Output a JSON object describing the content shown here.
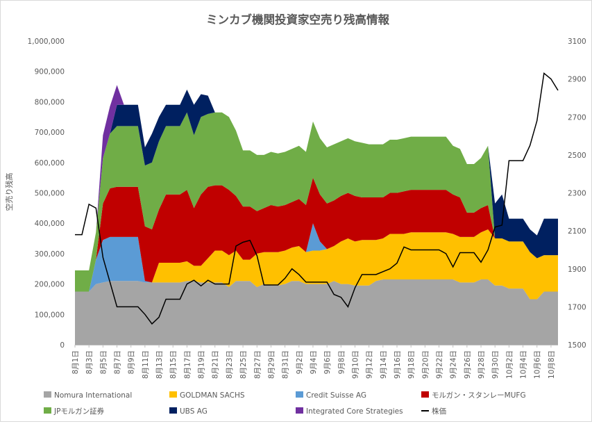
{
  "chart_data": {
    "type": "area",
    "title": "ミンカブ機関投資家空売り残高情報",
    "ylabel": "空売り残高",
    "ylim": [
      0,
      1000000
    ],
    "y_ticks": [
      "0",
      "100,000",
      "200,000",
      "300,000",
      "400,000",
      "500,000",
      "600,000",
      "700,000",
      "800,000",
      "900,000",
      "1,000,000"
    ],
    "y2lim": [
      1500,
      3100
    ],
    "y2_ticks": [
      "1500",
      "1700",
      "1900",
      "2100",
      "2300",
      "2500",
      "2700",
      "2900",
      "3100"
    ],
    "grid": false,
    "legend_position": "bottom",
    "x_tick_labels": [
      "8月1日",
      "8月3日",
      "8月5日",
      "8月7日",
      "8月9日",
      "8月11日",
      "8月13日",
      "8月15日",
      "8月17日",
      "8月19日",
      "8月21日",
      "8月23日",
      "8月25日",
      "8月27日",
      "8月29日",
      "8月31日",
      "9月2日",
      "9月4日",
      "9月6日",
      "9月8日",
      "9月10日",
      "9月12日",
      "9月14日",
      "9月16日",
      "9月18日",
      "9月20日",
      "9月22日",
      "9月24日",
      "9月26日",
      "9月28日",
      "9月30日",
      "10月2日",
      "10月4日",
      "10月6日",
      "10月8日"
    ],
    "x_start_label": "8月1日",
    "x_step_days": 1,
    "series": [
      {
        "name": "Nomura International",
        "color": "#a5a5a5",
        "values": [
          175000,
          175000,
          175000,
          200000,
          205000,
          210000,
          210000,
          210000,
          210000,
          210000,
          205000,
          205000,
          205000,
          205000,
          205000,
          205000,
          210000,
          210000,
          205000,
          205000,
          205000,
          205000,
          190000,
          210000,
          210000,
          210000,
          190000,
          200000,
          195000,
          195000,
          200000,
          210000,
          210000,
          200000,
          200000,
          200000,
          200000,
          210000,
          200000,
          200000,
          195000,
          195000,
          195000,
          210000,
          215000,
          215000,
          215000,
          215000,
          215000,
          215000,
          215000,
          215000,
          215000,
          215000,
          215000,
          205000,
          205000,
          205000,
          215000,
          215000,
          195000,
          195000,
          185000,
          185000,
          185000,
          150000,
          150000,
          175000,
          175000,
          175000
        ]
      },
      {
        "name": "GOLDMAN SACHS",
        "color": "#ffc000",
        "values": [
          0,
          0,
          0,
          0,
          0,
          0,
          0,
          0,
          0,
          0,
          0,
          0,
          65000,
          65000,
          65000,
          65000,
          65000,
          50000,
          55000,
          80000,
          105000,
          105000,
          105000,
          100000,
          70000,
          70000,
          110000,
          105000,
          110000,
          110000,
          110000,
          110000,
          115000,
          105000,
          110000,
          110000,
          115000,
          115000,
          140000,
          150000,
          145000,
          150000,
          150000,
          135000,
          135000,
          150000,
          150000,
          150000,
          155000,
          155000,
          155000,
          155000,
          155000,
          155000,
          150000,
          150000,
          150000,
          150000,
          155000,
          165000,
          155000,
          155000,
          155000,
          155000,
          155000,
          155000,
          135000,
          120000,
          120000,
          120000
        ]
      },
      {
        "name": "Credit Suisse AG",
        "color": "#5b9bd5",
        "values": [
          0,
          0,
          0,
          80000,
          140000,
          145000,
          145000,
          145000,
          145000,
          145000,
          5000,
          0,
          0,
          0,
          0,
          0,
          0,
          0,
          0,
          0,
          0,
          0,
          0,
          0,
          0,
          0,
          0,
          0,
          0,
          0,
          0,
          0,
          0,
          0,
          90000,
          30000,
          0,
          0,
          0,
          0,
          0,
          0,
          0,
          0,
          0,
          0,
          0,
          0,
          0,
          0,
          0,
          0,
          0,
          0,
          0,
          0,
          0,
          0,
          0,
          0,
          0,
          0,
          0,
          0,
          0,
          0,
          0,
          0,
          0,
          0
        ]
      },
      {
        "name": "モルガン・スタンレーMUFG",
        "color": "#c00000",
        "values": [
          0,
          0,
          0,
          0,
          120000,
          160000,
          165000,
          165000,
          165000,
          165000,
          180000,
          175000,
          175000,
          225000,
          225000,
          225000,
          235000,
          190000,
          235000,
          235000,
          215000,
          215000,
          215000,
          180000,
          175000,
          175000,
          140000,
          145000,
          155000,
          150000,
          150000,
          150000,
          155000,
          155000,
          150000,
          155000,
          150000,
          150000,
          150000,
          150000,
          150000,
          140000,
          140000,
          140000,
          135000,
          135000,
          135000,
          140000,
          140000,
          140000,
          140000,
          140000,
          140000,
          140000,
          130000,
          130000,
          80000,
          80000,
          80000,
          80000,
          0,
          0,
          0,
          0,
          0,
          0,
          0,
          0,
          0,
          0
        ]
      },
      {
        "name": "JPモルガン証券",
        "color": "#70ad47",
        "values": [
          70000,
          70000,
          70000,
          90000,
          150000,
          180000,
          200000,
          200000,
          200000,
          200000,
          200000,
          220000,
          225000,
          225000,
          225000,
          225000,
          255000,
          240000,
          255000,
          240000,
          240000,
          240000,
          240000,
          215000,
          185000,
          185000,
          185000,
          175000,
          175000,
          175000,
          175000,
          175000,
          175000,
          175000,
          185000,
          185000,
          185000,
          185000,
          180000,
          180000,
          180000,
          180000,
          175000,
          175000,
          175000,
          175000,
          175000,
          175000,
          175000,
          175000,
          175000,
          175000,
          175000,
          175000,
          160000,
          160000,
          160000,
          160000,
          165000,
          195000,
          0,
          0,
          0,
          0,
          0,
          0,
          0,
          0,
          0,
          0
        ]
      },
      {
        "name": "UBS AG",
        "color": "#002060",
        "values": [
          0,
          0,
          0,
          0,
          0,
          0,
          70000,
          70000,
          70000,
          70000,
          60000,
          95000,
          80000,
          70000,
          70000,
          70000,
          75000,
          100000,
          75000,
          60000,
          0,
          0,
          0,
          0,
          0,
          0,
          0,
          0,
          0,
          0,
          0,
          0,
          0,
          0,
          0,
          0,
          0,
          0,
          0,
          0,
          0,
          0,
          0,
          0,
          0,
          0,
          0,
          0,
          0,
          0,
          0,
          0,
          0,
          0,
          0,
          0,
          0,
          0,
          0,
          0,
          115000,
          145000,
          75000,
          75000,
          75000,
          75000,
          75000,
          120000,
          120000,
          120000
        ]
      },
      {
        "name": "Integrated Core Strategies",
        "color": "#7030a0",
        "values": [
          0,
          0,
          0,
          0,
          75000,
          90000,
          65000,
          0,
          0,
          0,
          0,
          0,
          0,
          0,
          0,
          0,
          0,
          0,
          0,
          0,
          0,
          0,
          0,
          0,
          0,
          0,
          0,
          0,
          0,
          0,
          0,
          0,
          0,
          0,
          0,
          0,
          0,
          0,
          0,
          0,
          0,
          0,
          0,
          0,
          0,
          0,
          0,
          0,
          0,
          0,
          0,
          0,
          0,
          0,
          0,
          0,
          0,
          0,
          0,
          0,
          0,
          0,
          0,
          0,
          0,
          0,
          0,
          0,
          0,
          0
        ]
      },
      {
        "name": "株価",
        "color": "#000000",
        "axis": "right",
        "values": [
          2080,
          2080,
          2240,
          2220,
          1960,
          1830,
          1700,
          1700,
          1700,
          1700,
          1660,
          1610,
          1645,
          1740,
          1740,
          1740,
          1820,
          1840,
          1810,
          1840,
          1820,
          1820,
          1820,
          2020,
          2040,
          2050,
          1970,
          1815,
          1815,
          1815,
          1850,
          1900,
          1870,
          1830,
          1830,
          1830,
          1830,
          1765,
          1750,
          1700,
          1800,
          1870,
          1870,
          1870,
          1885,
          1900,
          1930,
          2015,
          2000,
          2000,
          2000,
          2000,
          2000,
          1980,
          1910,
          1985,
          1985,
          1985,
          1935,
          2000,
          2120,
          2130,
          2470,
          2470,
          2470,
          2550,
          2680,
          2930,
          2900,
          2840
        ]
      }
    ]
  },
  "legend": [
    {
      "label": "Nomura International",
      "color": "#a5a5a5",
      "kind": "box"
    },
    {
      "label": "GOLDMAN SACHS",
      "color": "#ffc000",
      "kind": "box"
    },
    {
      "label": "Credit Suisse AG",
      "color": "#5b9bd5",
      "kind": "box"
    },
    {
      "label": "モルガン・スタンレーMUFG",
      "color": "#c00000",
      "kind": "box"
    },
    {
      "label": "JPモルガン証券",
      "color": "#70ad47",
      "kind": "box"
    },
    {
      "label": "UBS AG",
      "color": "#002060",
      "kind": "box"
    },
    {
      "label": "Integrated Core Strategies",
      "color": "#7030a0",
      "kind": "box"
    },
    {
      "label": "株価",
      "color": "#000000",
      "kind": "line"
    }
  ]
}
